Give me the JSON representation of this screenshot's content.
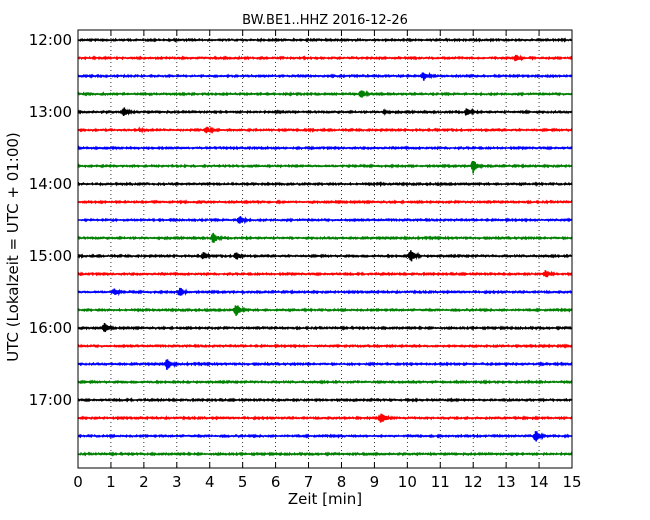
{
  "chart_data": {
    "type": "line",
    "title": "BW.BE1..HHZ 2016-12-26",
    "xlabel": "Zeit  [min]",
    "ylabel": "UTC (Lokalzeit = UTC + 01:00)",
    "xlim": [
      0,
      15
    ],
    "x_ticks": [
      "0",
      "1",
      "2",
      "3",
      "4",
      "5",
      "6",
      "7",
      "8",
      "9",
      "10",
      "11",
      "12",
      "13",
      "14",
      "15"
    ],
    "y_ticks": [
      "12:00",
      "13:00",
      "14:00",
      "15:00",
      "16:00",
      "17:00"
    ],
    "vertical_grid": "dotted",
    "trace_interval_min": 15,
    "color_cycle": [
      "#000000",
      "#ff0000",
      "#0000ff",
      "#008000"
    ],
    "series": [
      {
        "start": "12:00",
        "color": "#000000",
        "events": []
      },
      {
        "start": "12:15",
        "color": "#ff0000",
        "events": [
          {
            "minute": 4.4,
            "amp": 0.1
          },
          {
            "minute": 13.3,
            "amp": 0.45
          }
        ]
      },
      {
        "start": "12:30",
        "color": "#0000ff",
        "events": [
          {
            "minute": 10.5,
            "amp": 0.55
          }
        ]
      },
      {
        "start": "12:45",
        "color": "#008000",
        "events": [
          {
            "minute": 8.6,
            "amp": 0.6
          }
        ]
      },
      {
        "start": "13:00",
        "color": "#000000",
        "events": [
          {
            "minute": 1.4,
            "amp": 0.55
          },
          {
            "minute": 9.3,
            "amp": 0.2
          },
          {
            "minute": 11.8,
            "amp": 0.55
          },
          {
            "minute": 13.6,
            "amp": 0.15
          }
        ]
      },
      {
        "start": "13:15",
        "color": "#ff0000",
        "events": [
          {
            "minute": 1.9,
            "amp": 0.25
          },
          {
            "minute": 3.9,
            "amp": 0.45
          }
        ]
      },
      {
        "start": "13:30",
        "color": "#0000ff",
        "events": []
      },
      {
        "start": "13:45",
        "color": "#008000",
        "events": [
          {
            "minute": 12.0,
            "amp": 0.8
          }
        ]
      },
      {
        "start": "14:00",
        "color": "#000000",
        "events": [
          {
            "minute": 9.2,
            "amp": 0.12
          }
        ]
      },
      {
        "start": "14:15",
        "color": "#ff0000",
        "events": []
      },
      {
        "start": "14:30",
        "color": "#0000ff",
        "events": [
          {
            "minute": 4.9,
            "amp": 0.6
          }
        ]
      },
      {
        "start": "14:45",
        "color": "#008000",
        "events": [
          {
            "minute": 4.1,
            "amp": 0.75
          }
        ]
      },
      {
        "start": "15:00",
        "color": "#000000",
        "events": [
          {
            "minute": 3.8,
            "amp": 0.5
          },
          {
            "minute": 4.8,
            "amp": 0.55
          },
          {
            "minute": 10.1,
            "amp": 0.8
          }
        ]
      },
      {
        "start": "15:15",
        "color": "#ff0000",
        "events": [
          {
            "minute": 14.2,
            "amp": 0.55
          }
        ]
      },
      {
        "start": "15:30",
        "color": "#0000ff",
        "events": [
          {
            "minute": 1.1,
            "amp": 0.45
          },
          {
            "minute": 3.1,
            "amp": 0.55
          }
        ]
      },
      {
        "start": "15:45",
        "color": "#008000",
        "events": [
          {
            "minute": 4.8,
            "amp": 0.8
          }
        ]
      },
      {
        "start": "16:00",
        "color": "#000000",
        "events": [
          {
            "minute": 0.8,
            "amp": 0.65
          }
        ]
      },
      {
        "start": "16:15",
        "color": "#ff0000",
        "events": []
      },
      {
        "start": "16:30",
        "color": "#0000ff",
        "events": [
          {
            "minute": 2.7,
            "amp": 0.7
          }
        ]
      },
      {
        "start": "16:45",
        "color": "#008000",
        "events": []
      },
      {
        "start": "17:00",
        "color": "#000000",
        "events": []
      },
      {
        "start": "17:15",
        "color": "#ff0000",
        "events": [
          {
            "minute": 9.2,
            "amp": 0.75
          }
        ]
      },
      {
        "start": "17:30",
        "color": "#0000ff",
        "events": [
          {
            "minute": 13.9,
            "amp": 0.75
          }
        ]
      },
      {
        "start": "17:45",
        "color": "#008000",
        "events": []
      }
    ]
  }
}
